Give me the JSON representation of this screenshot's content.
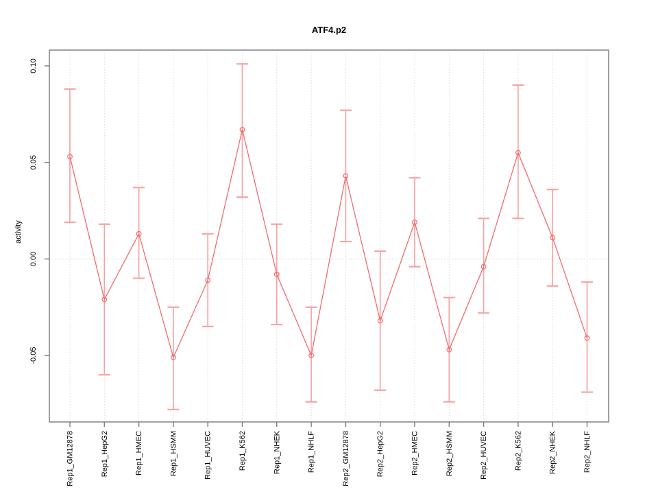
{
  "chart_data": {
    "type": "line",
    "title": "ATF4.p2",
    "xlabel": "",
    "ylabel": "activity",
    "legend": "none",
    "grid": {
      "vertical_dotted_per_category": true,
      "horizontal_dotted_zero_line": true
    },
    "ylim": [
      -0.084,
      0.108
    ],
    "yticks": {
      "values": [
        0.1,
        0.05,
        0.0,
        -0.05
      ],
      "labels": [
        "0.10",
        "0.05",
        "0.00",
        "-0.05"
      ]
    },
    "categories": [
      "Rep1_GM12878",
      "Rep1_HepG2",
      "Rep1_HMEC",
      "Rep1_HSMM",
      "Rep1_HUVEC",
      "Rep1_K562",
      "Rep1_NHEK",
      "Rep1_NHLF",
      "Rep2_GM12878",
      "Rep2_HepG2",
      "Rep2_HMEC",
      "Rep2_HSMM",
      "Rep2_HUVEC",
      "Rep2_K562",
      "Rep2_NHEK",
      "Rep2_NHLF"
    ],
    "series": [
      {
        "name": "activity",
        "marker": "open-circle",
        "values": [
          0.053,
          -0.021,
          0.013,
          -0.051,
          -0.011,
          0.067,
          -0.008,
          -0.05,
          0.043,
          -0.032,
          0.019,
          -0.047,
          -0.004,
          0.055,
          0.011,
          -0.041
        ],
        "upper": [
          0.088,
          0.018,
          0.037,
          -0.025,
          0.013,
          0.101,
          0.018,
          -0.025,
          0.077,
          0.004,
          0.042,
          -0.02,
          0.021,
          0.09,
          0.036,
          -0.012
        ],
        "lower": [
          0.019,
          -0.06,
          -0.01,
          -0.078,
          -0.035,
          0.032,
          -0.034,
          -0.074,
          0.009,
          -0.068,
          -0.004,
          -0.074,
          -0.028,
          0.021,
          -0.014,
          -0.069
        ]
      }
    ],
    "colors": {
      "line": "#f26a6a",
      "marker": "#f26a6a",
      "error_bar": "#f7a3a3",
      "frame": "#969696",
      "tick": "#808080",
      "gridline": "#d9d9d9",
      "zero_line": "#c9c9c9",
      "text": "#000000"
    }
  }
}
